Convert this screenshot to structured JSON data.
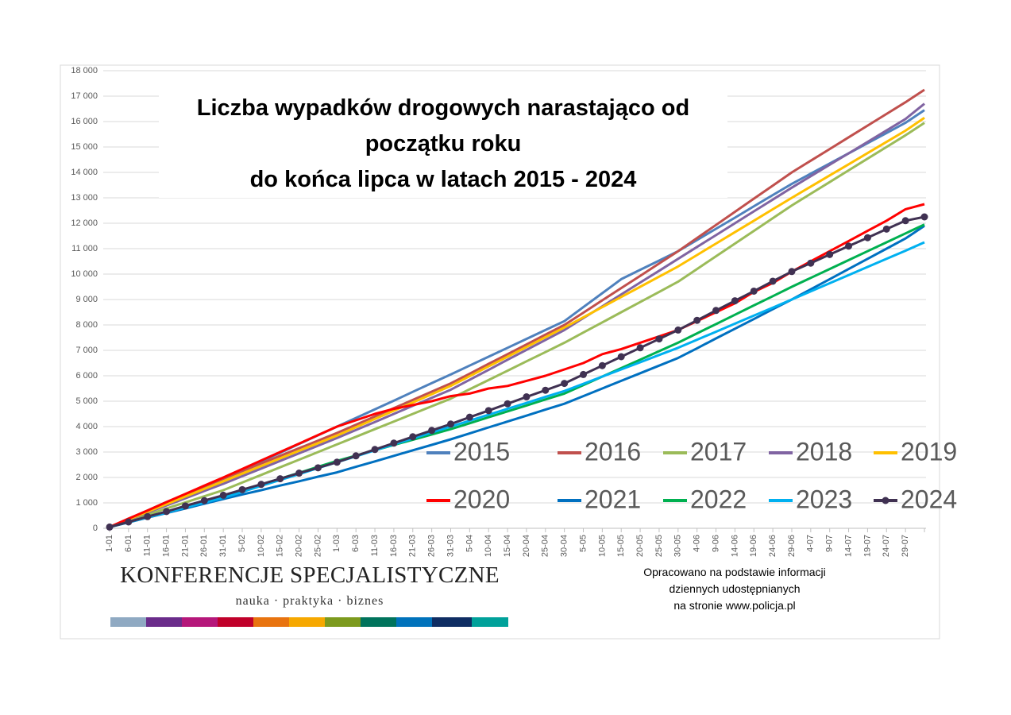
{
  "chart_data": {
    "type": "line",
    "title": "Liczba wypadków drogowych narastająco od\npoczątku roku\ndo końca lipca w latach 2015 - 2024",
    "note": "Opracowano na podstawie informacji\ndziennych udostępnianych\nna stronie www.policja.pl",
    "categories": [
      "1-01",
      "6-01",
      "11-01",
      "16-01",
      "21-01",
      "26-01",
      "31-01",
      "5-02",
      "10-02",
      "15-02",
      "20-02",
      "25-02",
      "1-03",
      "6-03",
      "11-03",
      "16-03",
      "21-03",
      "26-03",
      "31-03",
      "5-04",
      "10-04",
      "15-04",
      "20-04",
      "25-04",
      "30-04",
      "5-05",
      "10-05",
      "15-05",
      "20-05",
      "25-05",
      "30-05",
      "4-06",
      "9-06",
      "14-06",
      "19-06",
      "24-06",
      "29-06",
      "4-07",
      "9-07",
      "14-07",
      "19-07",
      "24-07",
      "29-07",
      null
    ],
    "ylim": [
      0,
      18000
    ],
    "yticks": [
      0,
      {
        "value": 1000,
        "label": "1 000"
      },
      {
        "value": 2000,
        "label": "2 000"
      },
      {
        "value": 3000,
        "label": "3 000"
      },
      {
        "value": 4000,
        "label": "4 000"
      },
      {
        "value": 5000,
        "label": "5 000"
      },
      {
        "value": 6000,
        "label": "6 000"
      },
      {
        "value": 7000,
        "label": "7 000"
      },
      {
        "value": 8000,
        "label": "8 000"
      },
      {
        "value": 9000,
        "label": "9 000"
      },
      {
        "value": 10000,
        "label": "10 000"
      },
      {
        "value": 11000,
        "label": "11 000"
      },
      {
        "value": 12000,
        "label": "12 000"
      },
      {
        "value": 13000,
        "label": "13 000"
      },
      {
        "value": 14000,
        "label": "14 000"
      },
      {
        "value": 15000,
        "label": "15 000"
      },
      {
        "value": 16000,
        "label": "16 000"
      },
      {
        "value": 17000,
        "label": "17 000"
      },
      {
        "value": 18000,
        "label": "18 000"
      }
    ],
    "grid": true,
    "series": [
      {
        "name": "2015",
        "color": "#4f81bd",
        "values": [
          50,
          370,
          700,
          1030,
          1330,
          1650,
          1950,
          2290,
          2630,
          2970,
          3320,
          3660,
          4000,
          4340,
          4680,
          5020,
          5370,
          5710,
          6050,
          6400,
          6750,
          7100,
          7450,
          7800,
          8150,
          8700,
          9250,
          9800,
          10170,
          10530,
          10900,
          11340,
          11780,
          12220,
          12670,
          13110,
          13550,
          13950,
          14350,
          14750,
          15150,
          15550,
          15950,
          16450
        ]
      },
      {
        "name": "2016",
        "color": "#c0504d",
        "values": [
          50,
          350,
          680,
          1000,
          1320,
          1640,
          1950,
          2250,
          2550,
          2850,
          3150,
          3450,
          3750,
          4075,
          4400,
          4725,
          5050,
          5375,
          5700,
          6080,
          6470,
          6850,
          7230,
          7620,
          8000,
          8480,
          8970,
          9450,
          9930,
          10420,
          10900,
          11420,
          11930,
          12450,
          12970,
          13480,
          14000,
          14460,
          14920,
          15380,
          15840,
          16300,
          16760,
          17250
        ]
      },
      {
        "name": "2017",
        "color": "#9bbb59",
        "values": [
          50,
          290,
          530,
          780,
          1020,
          1260,
          1500,
          1800,
          2100,
          2400,
          2700,
          3000,
          3300,
          3600,
          3900,
          4200,
          4500,
          4800,
          5100,
          5470,
          5830,
          6200,
          6570,
          6930,
          7300,
          7700,
          8100,
          8500,
          8900,
          9300,
          9700,
          10200,
          10700,
          11200,
          11700,
          12200,
          12700,
          13160,
          13620,
          14080,
          14540,
          15000,
          15460,
          15950
        ]
      },
      {
        "name": "2018",
        "color": "#8064a2",
        "values": [
          50,
          330,
          620,
          900,
          1180,
          1470,
          1750,
          2050,
          2350,
          2650,
          2950,
          3250,
          3550,
          3870,
          4180,
          4500,
          4820,
          5130,
          5450,
          5840,
          6230,
          6630,
          7020,
          7410,
          7800,
          8270,
          8730,
          9200,
          9670,
          10130,
          10600,
          11070,
          11530,
          12000,
          12470,
          12930,
          13400,
          13850,
          14300,
          14750,
          15200,
          15650,
          16100,
          16700
        ]
      },
      {
        "name": "2019",
        "color": "#ffc000",
        "values": [
          50,
          350,
          650,
          950,
          1250,
          1550,
          1850,
          2150,
          2450,
          2750,
          3050,
          3350,
          3650,
          3975,
          4300,
          4625,
          4950,
          5275,
          5600,
          5980,
          6370,
          6750,
          7130,
          7520,
          7900,
          8300,
          8700,
          9100,
          9500,
          9900,
          10300,
          10750,
          11200,
          11650,
          12100,
          12550,
          13000,
          13440,
          13880,
          14320,
          14760,
          15200,
          15640,
          16150
        ]
      },
      {
        "name": "2020",
        "color": "#ff0000",
        "values": [
          50,
          380,
          700,
          1030,
          1350,
          1680,
          2000,
          2330,
          2670,
          3000,
          3330,
          3670,
          4000,
          4250,
          4500,
          4700,
          4850,
          5000,
          5200,
          5300,
          5500,
          5600,
          5800,
          6000,
          6250,
          6500,
          6850,
          7050,
          7300,
          7550,
          7800,
          8150,
          8500,
          8850,
          9300,
          9650,
          10100,
          10500,
          10900,
          11300,
          11700,
          12100,
          12550,
          12750
        ]
      },
      {
        "name": "2021",
        "color": "#0070c0",
        "values": [
          50,
          230,
          420,
          600,
          780,
          970,
          1150,
          1330,
          1500,
          1680,
          1850,
          2030,
          2200,
          2420,
          2630,
          2850,
          3070,
          3280,
          3500,
          3730,
          3970,
          4200,
          4430,
          4670,
          4900,
          5200,
          5500,
          5800,
          6100,
          6400,
          6700,
          7080,
          7470,
          7850,
          8230,
          8620,
          9000,
          9400,
          9800,
          10200,
          10600,
          11000,
          11400,
          11900
        ]
      },
      {
        "name": "2022",
        "color": "#00b050",
        "values": [
          50,
          250,
          450,
          650,
          850,
          1050,
          1250,
          1480,
          1720,
          1950,
          2180,
          2420,
          2650,
          2860,
          3070,
          3280,
          3480,
          3690,
          3900,
          4130,
          4370,
          4600,
          4830,
          5070,
          5300,
          5630,
          5970,
          6300,
          6630,
          6970,
          7300,
          7670,
          8030,
          8400,
          8770,
          9130,
          9500,
          9850,
          10200,
          10550,
          10900,
          11250,
          11600,
          11950
        ]
      },
      {
        "name": "2023",
        "color": "#00b0f0",
        "values": [
          50,
          240,
          430,
          620,
          820,
          1010,
          1200,
          1430,
          1670,
          1900,
          2130,
          2370,
          2600,
          2830,
          3070,
          3300,
          3530,
          3770,
          4000,
          4230,
          4470,
          4700,
          4930,
          5170,
          5400,
          5680,
          5970,
          6250,
          6530,
          6820,
          7100,
          7420,
          7730,
          8050,
          8370,
          8680,
          9000,
          9320,
          9640,
          9960,
          10280,
          10600,
          10920,
          11250
        ]
      },
      {
        "name": "2024",
        "color": "#403152",
        "marker": true,
        "values": [
          50,
          250,
          460,
          660,
          880,
          1090,
          1300,
          1520,
          1730,
          1950,
          2170,
          2380,
          2600,
          2850,
          3100,
          3350,
          3600,
          3850,
          4100,
          4370,
          4630,
          4900,
          5170,
          5430,
          5700,
          6050,
          6400,
          6750,
          7100,
          7450,
          7800,
          8180,
          8570,
          8950,
          9330,
          9720,
          10100,
          10430,
          10770,
          11100,
          11430,
          11770,
          12100,
          12250
        ]
      }
    ]
  },
  "logo": {
    "name": "KONFERENCJE SPECJALISTYCZNE",
    "tagline": "nauka · praktyka · biznes"
  }
}
